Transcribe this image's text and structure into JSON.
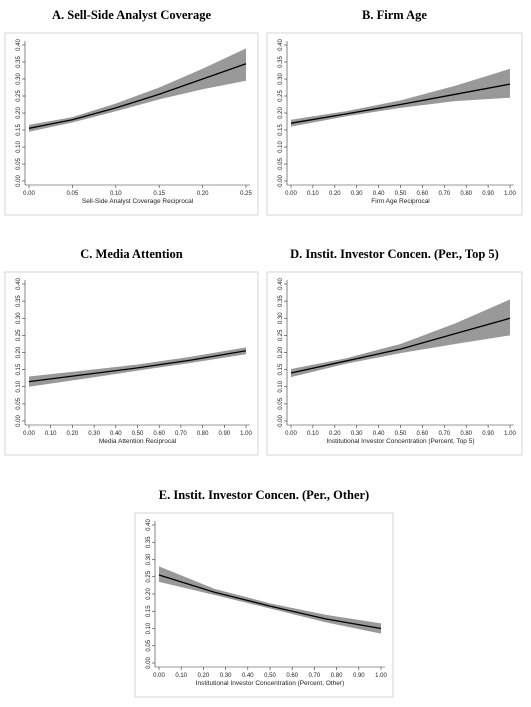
{
  "chart_data": [
    {
      "type": "line",
      "title": "A. Sell-Side Analyst Coverage",
      "xlabel": "Sell-Side Analyst Coverage Reciprocal",
      "x": [
        0,
        0.05,
        0.1,
        0.15,
        0.2,
        0.25
      ],
      "values": [
        0.155,
        0.18,
        0.215,
        0.255,
        0.3,
        0.345
      ],
      "lower": [
        0.145,
        0.172,
        0.205,
        0.24,
        0.27,
        0.295
      ],
      "upper": [
        0.165,
        0.188,
        0.228,
        0.275,
        0.33,
        0.39
      ],
      "color": "#000000",
      "band_color": "#999999",
      "xlim": [
        0,
        0.25
      ],
      "xticks": [
        {
          "value": 0,
          "label": "0.00"
        },
        {
          "value": 0.05,
          "label": "0.05"
        },
        {
          "value": 0.1,
          "label": "0.10"
        },
        {
          "value": 0.15,
          "label": "0.15"
        },
        {
          "value": 0.2,
          "label": "0.20"
        },
        {
          "value": 0.25,
          "label": "0.25"
        }
      ],
      "ylim": [
        0,
        0.4
      ],
      "yticks": [
        {
          "value": 0,
          "label": "0.00"
        },
        {
          "value": 0.05,
          "label": "0.05"
        },
        {
          "value": 0.1,
          "label": "0.10"
        },
        {
          "value": 0.15,
          "label": "0.15"
        },
        {
          "value": 0.2,
          "label": "0.20"
        },
        {
          "value": 0.25,
          "label": "0.25"
        },
        {
          "value": 0.3,
          "label": "0.30"
        },
        {
          "value": 0.35,
          "label": "0.35"
        },
        {
          "value": 0.4,
          "label": "0.40"
        }
      ]
    },
    {
      "type": "line",
      "title": "B. Firm Age",
      "xlabel": "Firm Age Reciprocal",
      "x": [
        0,
        0.25,
        0.5,
        0.75,
        1
      ],
      "values": [
        0.17,
        0.197,
        0.225,
        0.255,
        0.285
      ],
      "lower": [
        0.16,
        0.19,
        0.215,
        0.235,
        0.245
      ],
      "upper": [
        0.18,
        0.205,
        0.237,
        0.28,
        0.33
      ],
      "color": "#000000",
      "band_color": "#999999",
      "xlim": [
        0,
        1
      ],
      "xticks": [
        {
          "value": 0,
          "label": "0.00"
        },
        {
          "value": 0.1,
          "label": "0.10"
        },
        {
          "value": 0.2,
          "label": "0.20"
        },
        {
          "value": 0.3,
          "label": "0.30"
        },
        {
          "value": 0.4,
          "label": "0.40"
        },
        {
          "value": 0.5,
          "label": "0.50"
        },
        {
          "value": 0.6,
          "label": "0.60"
        },
        {
          "value": 0.7,
          "label": "0.70"
        },
        {
          "value": 0.8,
          "label": "0.80"
        },
        {
          "value": 0.9,
          "label": "0.90"
        },
        {
          "value": 1,
          "label": "1.00"
        }
      ],
      "ylim": [
        0,
        0.4
      ],
      "yticks": [
        {
          "value": 0,
          "label": "0.00"
        },
        {
          "value": 0.05,
          "label": "0.05"
        },
        {
          "value": 0.1,
          "label": "0.10"
        },
        {
          "value": 0.15,
          "label": "0.15"
        },
        {
          "value": 0.2,
          "label": "0.20"
        },
        {
          "value": 0.25,
          "label": "0.25"
        },
        {
          "value": 0.3,
          "label": "0.30"
        },
        {
          "value": 0.35,
          "label": "0.35"
        },
        {
          "value": 0.4,
          "label": "0.40"
        }
      ]
    },
    {
      "type": "line",
      "title": "C. Media Attention",
      "xlabel": "Media Attention Reciprocal",
      "x": [
        0,
        0.25,
        0.5,
        0.75,
        1
      ],
      "values": [
        0.115,
        0.135,
        0.155,
        0.178,
        0.205
      ],
      "lower": [
        0.1,
        0.123,
        0.147,
        0.17,
        0.195
      ],
      "upper": [
        0.13,
        0.147,
        0.165,
        0.188,
        0.215
      ],
      "color": "#000000",
      "band_color": "#999999",
      "xlim": [
        0,
        1
      ],
      "xticks": [
        {
          "value": 0,
          "label": "0.00"
        },
        {
          "value": 0.1,
          "label": "0.10"
        },
        {
          "value": 0.2,
          "label": "0.20"
        },
        {
          "value": 0.3,
          "label": "0.30"
        },
        {
          "value": 0.4,
          "label": "0.40"
        },
        {
          "value": 0.5,
          "label": "0.50"
        },
        {
          "value": 0.6,
          "label": "0.60"
        },
        {
          "value": 0.7,
          "label": "0.70"
        },
        {
          "value": 0.8,
          "label": "0.80"
        },
        {
          "value": 0.9,
          "label": "0.90"
        },
        {
          "value": 1,
          "label": "1.00"
        }
      ],
      "ylim": [
        0,
        0.4
      ],
      "yticks": [
        {
          "value": 0,
          "label": "0.00"
        },
        {
          "value": 0.05,
          "label": "0.05"
        },
        {
          "value": 0.1,
          "label": "0.10"
        },
        {
          "value": 0.15,
          "label": "0.15"
        },
        {
          "value": 0.2,
          "label": "0.20"
        },
        {
          "value": 0.25,
          "label": "0.25"
        },
        {
          "value": 0.3,
          "label": "0.30"
        },
        {
          "value": 0.35,
          "label": "0.35"
        },
        {
          "value": 0.4,
          "label": "0.40"
        }
      ]
    },
    {
      "type": "line",
      "title": "D. Instit. Investor Concen. (Per., Top 5)",
      "xlabel": "Institutional Investor Concentration (Percent, Top 5)",
      "x": [
        0,
        0.25,
        0.5,
        0.75,
        1
      ],
      "values": [
        0.14,
        0.175,
        0.21,
        0.255,
        0.3
      ],
      "lower": [
        0.128,
        0.167,
        0.198,
        0.225,
        0.25
      ],
      "upper": [
        0.152,
        0.183,
        0.225,
        0.285,
        0.355
      ],
      "color": "#000000",
      "band_color": "#999999",
      "xlim": [
        0,
        1
      ],
      "xticks": [
        {
          "value": 0,
          "label": "0.00"
        },
        {
          "value": 0.1,
          "label": "0.10"
        },
        {
          "value": 0.2,
          "label": "0.20"
        },
        {
          "value": 0.3,
          "label": "0.30"
        },
        {
          "value": 0.4,
          "label": "0.40"
        },
        {
          "value": 0.5,
          "label": "0.50"
        },
        {
          "value": 0.6,
          "label": "0.60"
        },
        {
          "value": 0.7,
          "label": "0.70"
        },
        {
          "value": 0.8,
          "label": "0.80"
        },
        {
          "value": 0.9,
          "label": "0.90"
        },
        {
          "value": 1,
          "label": "1.00"
        }
      ],
      "ylim": [
        0,
        0.4
      ],
      "yticks": [
        {
          "value": 0,
          "label": "0.00"
        },
        {
          "value": 0.05,
          "label": "0.05"
        },
        {
          "value": 0.1,
          "label": "0.10"
        },
        {
          "value": 0.15,
          "label": "0.15"
        },
        {
          "value": 0.2,
          "label": "0.20"
        },
        {
          "value": 0.25,
          "label": "0.25"
        },
        {
          "value": 0.3,
          "label": "0.30"
        },
        {
          "value": 0.35,
          "label": "0.35"
        },
        {
          "value": 0.4,
          "label": "0.40"
        }
      ]
    },
    {
      "type": "line",
      "title": "E. Instit. Investor Concen. (Per., Other)",
      "xlabel": "Institutional Investor Concentration (Percent, Other)",
      "x": [
        0,
        0.25,
        0.5,
        0.75,
        1
      ],
      "values": [
        0.255,
        0.205,
        0.165,
        0.128,
        0.1
      ],
      "lower": [
        0.235,
        0.197,
        0.158,
        0.118,
        0.085
      ],
      "upper": [
        0.28,
        0.215,
        0.173,
        0.14,
        0.115
      ],
      "color": "#000000",
      "band_color": "#999999",
      "xlim": [
        0,
        1
      ],
      "xticks": [
        {
          "value": 0,
          "label": "0.00"
        },
        {
          "value": 0.1,
          "label": "0.10"
        },
        {
          "value": 0.2,
          "label": "0.20"
        },
        {
          "value": 0.3,
          "label": "0.30"
        },
        {
          "value": 0.4,
          "label": "0.40"
        },
        {
          "value": 0.5,
          "label": "0.50"
        },
        {
          "value": 0.6,
          "label": "0.60"
        },
        {
          "value": 0.7,
          "label": "0.70"
        },
        {
          "value": 0.8,
          "label": "0.80"
        },
        {
          "value": 0.9,
          "label": "0.90"
        },
        {
          "value": 1,
          "label": "1.00"
        }
      ],
      "ylim": [
        0,
        0.4
      ],
      "yticks": [
        {
          "value": 0,
          "label": "0.00"
        },
        {
          "value": 0.05,
          "label": "0.05"
        },
        {
          "value": 0.1,
          "label": "0.10"
        },
        {
          "value": 0.15,
          "label": "0.15"
        },
        {
          "value": 0.2,
          "label": "0.20"
        },
        {
          "value": 0.25,
          "label": "0.25"
        },
        {
          "value": 0.3,
          "label": "0.30"
        },
        {
          "value": 0.35,
          "label": "0.35"
        },
        {
          "value": 0.4,
          "label": "0.40"
        }
      ]
    }
  ]
}
